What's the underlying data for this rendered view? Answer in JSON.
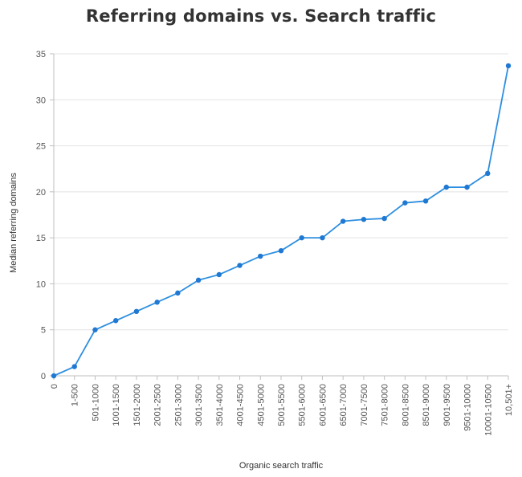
{
  "chart_data": {
    "type": "line",
    "title": "Referring domains vs. Search traffic",
    "xlabel": "Organic search traffic",
    "ylabel": "Median referring domains",
    "ylim": [
      0,
      35
    ],
    "yticks": [
      "0",
      "5",
      "10",
      "15",
      "20",
      "25",
      "30",
      "35"
    ],
    "grid": true,
    "categories": [
      "0",
      "1-500",
      "501-1000",
      "1001-1500",
      "1501-2000",
      "2001-2500",
      "2501-3000",
      "3001-3500",
      "3501-4000",
      "4001-4500",
      "4501-5000",
      "5001-5500",
      "5501-6000",
      "6001-6500",
      "6501-7000",
      "7001-7500",
      "7501-8000",
      "8001-8500",
      "8501-9000",
      "9001-9500",
      "9501-10000",
      "10001-10500",
      "10,501+"
    ],
    "series": [
      {
        "values": [
          0,
          1,
          5,
          6,
          7,
          8,
          9,
          10.4,
          11,
          12,
          13,
          13.6,
          15,
          15,
          16.8,
          17,
          17.1,
          18.8,
          19,
          20.5,
          20.5,
          22,
          33.7
        ]
      }
    ],
    "colors": {
      "line": "#2d8fe0",
      "point": "#1f78d1"
    }
  }
}
